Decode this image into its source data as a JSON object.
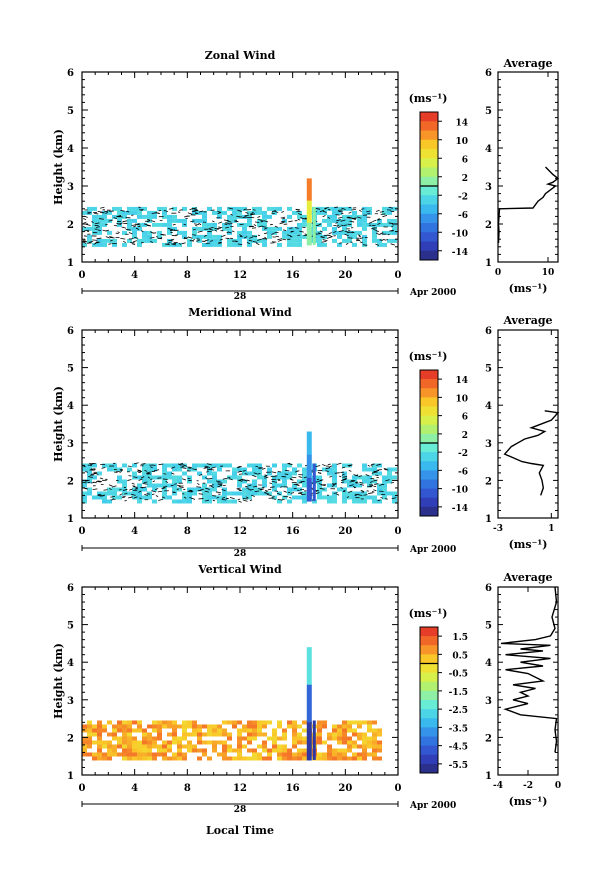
{
  "chart_data": [
    {
      "type": "heatmap",
      "title": "Zonal Wind",
      "ylabel": "Height (km)",
      "ylim": [
        1,
        6
      ],
      "xlim": [
        0,
        24
      ],
      "x_ticks": [
        "0",
        "4",
        "8",
        "12",
        "16",
        "20",
        "0"
      ],
      "y_ticks": [
        "1",
        "2",
        "3",
        "4",
        "5",
        "6"
      ],
      "date_label": "28",
      "month_label": "Apr 2000",
      "colorbar": {
        "unit": "(ms⁻¹)",
        "ticks": [
          "14",
          "10",
          "6",
          "2",
          "-2",
          "-6",
          "-10",
          "-14"
        ],
        "range": [
          -16,
          16
        ]
      },
      "field": {
        "bulk_value": -3,
        "height_range": [
          1.45,
          2.45
        ],
        "time_range": [
          0,
          24
        ],
        "coverage": 0.55,
        "spike": {
          "time": 17.3,
          "top": 3.2,
          "values": [
            12,
            6,
            1
          ]
        }
      },
      "average": {
        "title": "Average",
        "xlabel": "(ms⁻¹)",
        "xlim": [
          0,
          12
        ],
        "x_ticks": [
          "0",
          "10"
        ],
        "profile": [
          [
            0.1,
            1.5
          ],
          [
            0.2,
            1.8
          ],
          [
            0.1,
            2.0
          ],
          [
            0.2,
            2.2
          ],
          [
            0.3,
            2.4
          ],
          [
            7,
            2.42
          ],
          [
            8,
            2.6
          ],
          [
            9,
            2.7
          ],
          [
            9.5,
            2.8
          ],
          [
            10.5,
            2.9
          ],
          [
            11.5,
            3.0
          ],
          [
            10,
            3.05
          ],
          [
            11,
            3.1
          ],
          [
            12,
            3.2
          ],
          [
            11,
            3.3
          ],
          [
            9.5,
            3.5
          ]
        ]
      }
    },
    {
      "type": "heatmap",
      "title": "Meridional Wind",
      "ylabel": "Height (km)",
      "ylim": [
        1,
        6
      ],
      "xlim": [
        0,
        24
      ],
      "x_ticks": [
        "0",
        "4",
        "8",
        "12",
        "16",
        "20",
        "0"
      ],
      "y_ticks": [
        "1",
        "2",
        "3",
        "4",
        "5",
        "6"
      ],
      "date_label": "28",
      "month_label": "Apr 2000",
      "colorbar": {
        "unit": "(ms⁻¹)",
        "ticks": [
          "14",
          "10",
          "6",
          "2",
          "-2",
          "-6",
          "-10",
          "-14"
        ],
        "range": [
          -16,
          16
        ]
      },
      "field": {
        "bulk_value": -3,
        "height_range": [
          1.45,
          2.45
        ],
        "time_range": [
          0,
          24
        ],
        "coverage": 0.55,
        "spike": {
          "time": 17.3,
          "top": 3.3,
          "values": [
            -5,
            -7,
            -11
          ]
        }
      },
      "average": {
        "title": "Average",
        "xlabel": "(ms⁻¹)",
        "xlim": [
          -3,
          1.5
        ],
        "x_ticks": [
          "-3",
          "1"
        ],
        "profile": [
          [
            0.2,
            1.6
          ],
          [
            0.4,
            1.8
          ],
          [
            0.3,
            2.0
          ],
          [
            0.1,
            2.2
          ],
          [
            0.4,
            2.4
          ],
          [
            -0.5,
            2.45
          ],
          [
            -1.2,
            2.5
          ],
          [
            -2.5,
            2.7
          ],
          [
            -2,
            2.9
          ],
          [
            -1.5,
            3.0
          ],
          [
            -1,
            3.1
          ],
          [
            0,
            3.2
          ],
          [
            0.5,
            3.3
          ],
          [
            -0.5,
            3.4
          ],
          [
            1,
            3.6
          ],
          [
            1.5,
            3.8
          ],
          [
            0.5,
            3.85
          ]
        ]
      }
    },
    {
      "type": "heatmap",
      "title": "Vertical Wind",
      "ylabel": "Height (km)",
      "xlabel": "Local Time",
      "ylim": [
        1,
        6
      ],
      "xlim": [
        0,
        24
      ],
      "x_ticks": [
        "0",
        "4",
        "8",
        "12",
        "16",
        "20",
        "0"
      ],
      "y_ticks": [
        "1",
        "2",
        "3",
        "4",
        "5",
        "6"
      ],
      "date_label": "28",
      "month_label": "Apr 2000",
      "colorbar": {
        "unit": "(ms⁻¹)",
        "ticks": [
          "1.5",
          "0.5",
          "-0.5",
          "-1.5",
          "-2.5",
          "-3.5",
          "-4.5",
          "-5.5"
        ],
        "range": [
          -6,
          2
        ]
      },
      "field": {
        "bulk_value": 0.5,
        "height_range": [
          1.4,
          2.45
        ],
        "time_range": [
          0,
          22.5
        ],
        "coverage": 0.7,
        "spike": {
          "time": 17.3,
          "top": 4.4,
          "values": [
            -2.5,
            -4.5,
            -5.5
          ]
        }
      },
      "average": {
        "title": "Average",
        "xlabel": "(ms⁻¹)",
        "xlim": [
          -4,
          0
        ],
        "x_ticks": [
          "-4",
          "-2",
          "0"
        ],
        "profile": [
          [
            -0.2,
            1.6
          ],
          [
            -0.1,
            1.9
          ],
          [
            -0.2,
            2.2
          ],
          [
            -0.1,
            2.5
          ],
          [
            -2.5,
            2.6
          ],
          [
            -3.5,
            2.75
          ],
          [
            -2,
            2.9
          ],
          [
            -3,
            3.0
          ],
          [
            -2,
            3.1
          ],
          [
            -2.5,
            3.2
          ],
          [
            -1.5,
            3.3
          ],
          [
            -3,
            3.4
          ],
          [
            -1,
            3.5
          ],
          [
            -2,
            3.7
          ],
          [
            -3.5,
            3.8
          ],
          [
            -1,
            3.9
          ],
          [
            -2.5,
            4.0
          ],
          [
            -0.5,
            4.1
          ],
          [
            -3.5,
            4.2
          ],
          [
            -1,
            4.3
          ],
          [
            -2.5,
            4.35
          ],
          [
            -0.5,
            4.45
          ],
          [
            -3.8,
            4.5
          ],
          [
            -1.5,
            4.6
          ],
          [
            -0.5,
            4.7
          ],
          [
            -0.2,
            4.9
          ],
          [
            -0.4,
            5.2
          ],
          [
            -0.1,
            5.6
          ],
          [
            -0.2,
            6.0
          ]
        ]
      }
    }
  ]
}
